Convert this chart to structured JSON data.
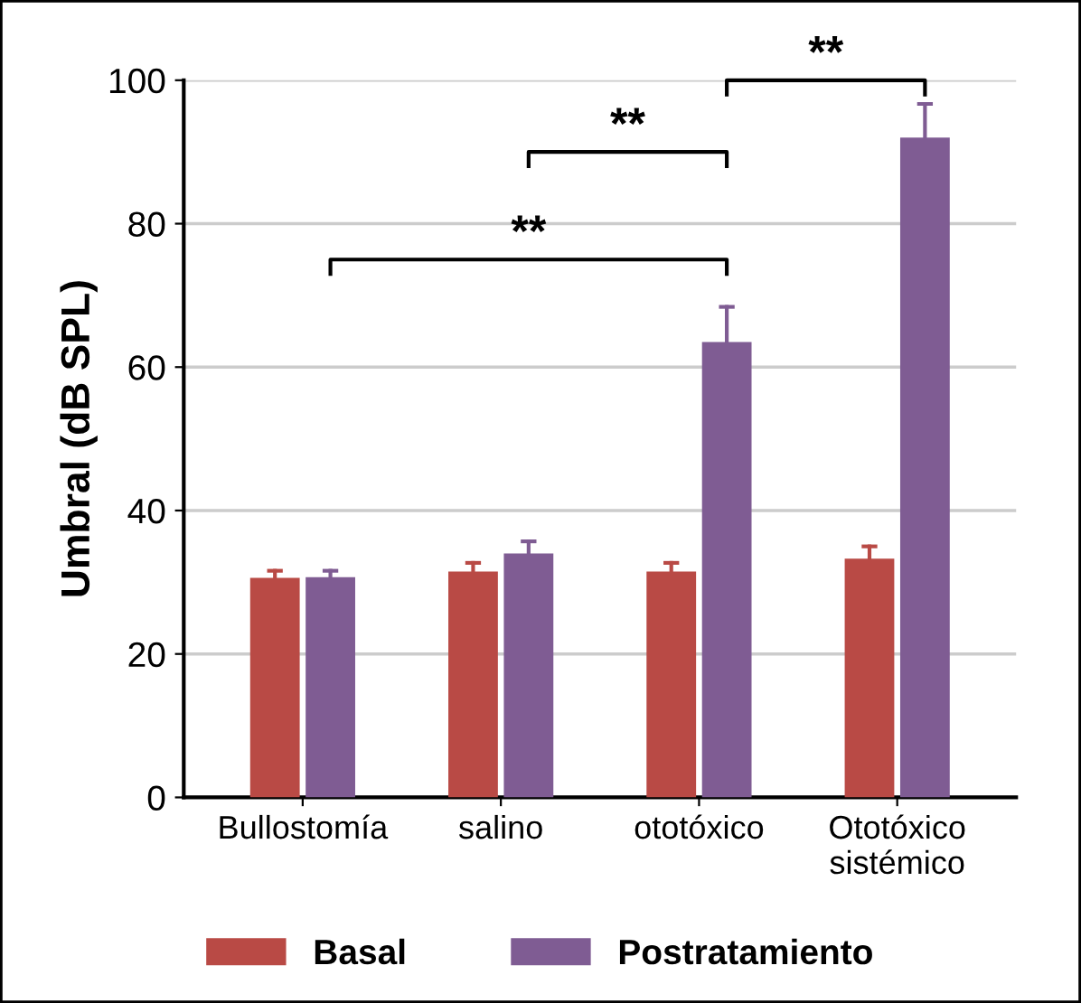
{
  "chart_data": {
    "type": "bar",
    "ylabel": "Umbral (dB SPL)",
    "categories": [
      "Bullostomía",
      "salino",
      "ototóxico",
      "Ototóxico\nsistémico"
    ],
    "series": [
      {
        "name": "Basal",
        "color": "#b94a45",
        "values": [
          30.6,
          31.5,
          31.5,
          33.3
        ],
        "errors": [
          [
            30.6,
            31.6
          ],
          [
            31.5,
            32.7
          ],
          [
            31.5,
            32.7
          ],
          [
            33.3,
            35.0
          ]
        ]
      },
      {
        "name": "Postratamiento",
        "color": "#7f5c93",
        "values": [
          30.7,
          34.0,
          63.5,
          92.0
        ],
        "errors": [
          [
            30.7,
            31.6
          ],
          [
            34.0,
            35.7
          ],
          [
            63.5,
            68.4
          ],
          [
            92.0,
            96.7
          ]
        ]
      }
    ],
    "ylim": [
      0,
      100
    ],
    "yticks": [
      0,
      20,
      40,
      60,
      80,
      100
    ],
    "grid": "y",
    "legend": "bottom",
    "annotations": [
      "**",
      "**",
      "**"
    ]
  }
}
